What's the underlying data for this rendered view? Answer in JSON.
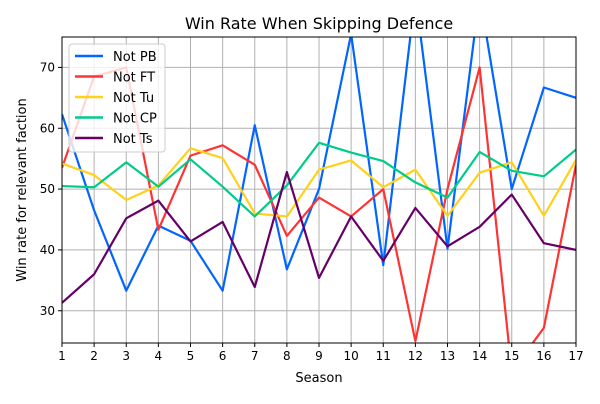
{
  "chart_data": {
    "type": "line",
    "title": "Win Rate When Skipping Defence",
    "xlabel": "Season",
    "ylabel": "Win rate for relevant faction",
    "x": [
      1,
      2,
      3,
      4,
      5,
      6,
      7,
      8,
      9,
      10,
      11,
      12,
      13,
      14,
      15,
      16,
      17
    ],
    "xticks": [
      "1",
      "2",
      "3",
      "4",
      "5",
      "6",
      "7",
      "8",
      "9",
      "10",
      "11",
      "12",
      "13",
      "14",
      "15",
      "16",
      "17"
    ],
    "yticks": [
      "30",
      "40",
      "50",
      "60",
      "70"
    ],
    "xlim": [
      1,
      17
    ],
    "ylim": [
      24.7,
      75
    ],
    "grid": true,
    "legend_position": "top-left",
    "series": [
      {
        "name": "Not PB",
        "color": "#0066ff",
        "values": [
          62.3,
          46.5,
          33.3,
          44,
          41.5,
          33.3,
          60.5,
          36.8,
          50,
          75.5,
          37.5,
          82,
          40.2,
          82,
          50,
          66.7,
          65
        ]
      },
      {
        "name": "Not FT",
        "color": "#ff3333",
        "values": [
          53.5,
          68.5,
          70,
          43.3,
          55.5,
          57.2,
          54,
          42.3,
          48.6,
          45.5,
          50,
          25,
          50,
          70,
          20,
          27.2,
          54
        ]
      },
      {
        "name": "Not Tu",
        "color": "#ffd11a",
        "values": [
          54.2,
          52.3,
          48.2,
          50.6,
          56.7,
          55.1,
          46,
          45.5,
          53.2,
          54.7,
          50.3,
          53.2,
          45.6,
          52.7,
          54.4,
          45.6,
          54.8
        ]
      },
      {
        "name": "Not CP",
        "color": "#00cc88",
        "values": [
          50.5,
          50.3,
          54.4,
          50.4,
          54.9,
          50.4,
          45.5,
          50.6,
          57.6,
          56,
          54.6,
          51.1,
          48.6,
          56.1,
          53,
          52.1,
          56.5
        ]
      },
      {
        "name": "Not Ts",
        "color": "#660066",
        "values": [
          31.3,
          36,
          45.2,
          48.1,
          41.4,
          44.6,
          33.9,
          52.8,
          35.4,
          45.5,
          38.2,
          46.9,
          40.6,
          43.8,
          49.1,
          41.1,
          40
        ]
      }
    ]
  }
}
